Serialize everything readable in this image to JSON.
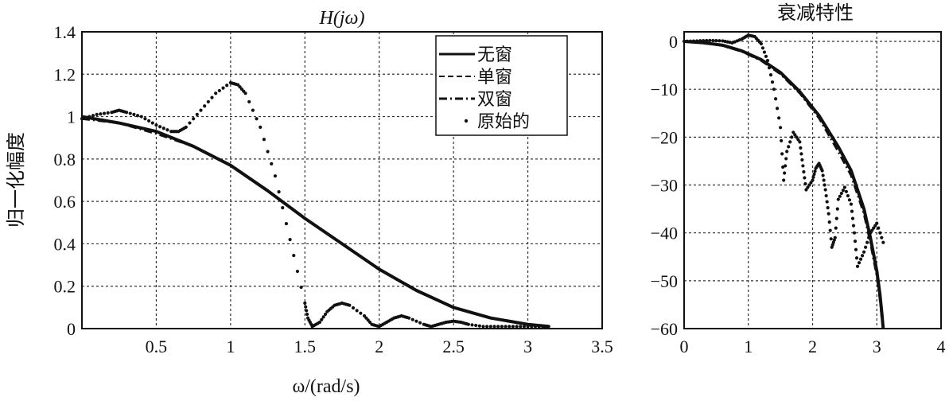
{
  "chart_data": [
    {
      "type": "line",
      "title": "H(jω)",
      "xlabel": "ω/(rad/s)",
      "ylabel": "归一化幅度",
      "xlim": [
        0,
        3.5
      ],
      "ylim": [
        0,
        1.4
      ],
      "xticks": [
        0.5,
        1,
        1.5,
        2,
        2.5,
        3,
        3.5
      ],
      "xtick_labels": [
        "0.5",
        "1",
        "1.5",
        "2",
        "2.5",
        "3",
        "3.5"
      ],
      "yticks": [
        0,
        0.2,
        0.4,
        0.6,
        0.8,
        1,
        1.2,
        1.4
      ],
      "ytick_labels": [
        "0",
        "0.2",
        "0.4",
        "0.6",
        "0.8",
        "1",
        "1.2",
        "1.4"
      ],
      "grid": true,
      "legend_position": "top-right",
      "series": [
        {
          "name": "无窗",
          "style": "solid",
          "x": [
            0,
            0.25,
            0.5,
            0.75,
            1.0,
            1.25,
            1.5,
            1.75,
            2.0,
            2.25,
            2.5,
            2.75,
            3.0,
            3.14
          ],
          "y": [
            1.0,
            0.97,
            0.93,
            0.86,
            0.77,
            0.65,
            0.52,
            0.4,
            0.28,
            0.18,
            0.1,
            0.05,
            0.02,
            0.01
          ]
        },
        {
          "name": "单窗",
          "style": "dashed",
          "x": [
            0,
            0.25,
            0.5,
            0.75,
            1.0,
            1.25,
            1.5,
            1.75,
            2.0,
            2.25,
            2.5,
            2.75,
            3.0,
            3.14
          ],
          "y": [
            1.0,
            0.97,
            0.93,
            0.86,
            0.77,
            0.65,
            0.52,
            0.4,
            0.28,
            0.18,
            0.1,
            0.05,
            0.02,
            0.01
          ]
        },
        {
          "name": "双窗",
          "style": "dashdot",
          "x": [
            0,
            0.25,
            0.5,
            0.75,
            1.0,
            1.25,
            1.5,
            1.75,
            2.0,
            2.25,
            2.5,
            2.75,
            3.0,
            3.14
          ],
          "y": [
            0.99,
            0.97,
            0.92,
            0.86,
            0.77,
            0.65,
            0.52,
            0.4,
            0.28,
            0.18,
            0.1,
            0.05,
            0.02,
            0.01
          ]
        },
        {
          "name": "原始的",
          "style": "dotted",
          "x": [
            0,
            0.1,
            0.2,
            0.25,
            0.3,
            0.4,
            0.5,
            0.6,
            0.65,
            0.7,
            0.8,
            0.9,
            1.0,
            1.05,
            1.1,
            1.2,
            1.3,
            1.4,
            1.5,
            1.52,
            1.55,
            1.6,
            1.65,
            1.7,
            1.75,
            1.8,
            1.9,
            1.95,
            2.0,
            2.05,
            2.1,
            2.15,
            2.2,
            2.3,
            2.35,
            2.4,
            2.45,
            2.5,
            2.55,
            2.6,
            2.7,
            2.8,
            2.9,
            3.0,
            3.1,
            3.14
          ],
          "y": [
            0.99,
            1.01,
            1.02,
            1.03,
            1.02,
            1.0,
            0.96,
            0.93,
            0.93,
            0.95,
            1.03,
            1.11,
            1.16,
            1.15,
            1.11,
            0.95,
            0.72,
            0.42,
            0.12,
            0.05,
            0.01,
            0.03,
            0.08,
            0.11,
            0.12,
            0.11,
            0.06,
            0.02,
            0.01,
            0.03,
            0.05,
            0.06,
            0.05,
            0.02,
            0.01,
            0.02,
            0.03,
            0.035,
            0.03,
            0.02,
            0.01,
            0.01,
            0.01,
            0.01,
            0.01,
            0.01
          ]
        }
      ]
    },
    {
      "type": "line",
      "title": "衰减特性",
      "xlim": [
        0,
        4
      ],
      "ylim": [
        -60,
        2
      ],
      "xticks": [
        0,
        1,
        2,
        3,
        4
      ],
      "xtick_labels": [
        "0",
        "1",
        "2",
        "3",
        "4"
      ],
      "yticks": [
        0,
        -10,
        -20,
        -30,
        -40,
        -50,
        -60
      ],
      "ytick_labels": [
        "0",
        "−10",
        "−20",
        "−30",
        "−40",
        "−50",
        "−60"
      ],
      "grid": true,
      "series": [
        {
          "style": "solid",
          "x": [
            0,
            0.3,
            0.6,
            0.9,
            1.2,
            1.5,
            1.8,
            2.1,
            2.4,
            2.6,
            2.8,
            2.9,
            3.0,
            3.05,
            3.08,
            3.1
          ],
          "y": [
            0,
            -0.3,
            -0.8,
            -2.0,
            -3.8,
            -6.5,
            -10.5,
            -15.5,
            -22,
            -27,
            -35,
            -41,
            -48,
            -53,
            -57,
            -60
          ]
        },
        {
          "style": "dashed",
          "x": [
            0,
            0.3,
            0.6,
            0.9,
            1.2,
            1.5,
            1.8,
            2.1,
            2.4,
            2.6,
            2.8,
            2.9,
            3.0,
            3.05,
            3.08,
            3.1
          ],
          "y": [
            0,
            -0.3,
            -0.8,
            -2.0,
            -3.8,
            -6.5,
            -10.5,
            -15.5,
            -22,
            -27,
            -35,
            -41,
            -48,
            -53,
            -57,
            -60
          ]
        },
        {
          "style": "dashdot",
          "x": [
            0,
            0.3,
            0.6,
            0.9,
            1.2,
            1.5,
            1.8,
            2.1,
            2.4,
            2.6,
            2.8,
            2.9,
            3.0,
            3.05,
            3.08,
            3.1
          ],
          "y": [
            0,
            -0.3,
            -0.9,
            -2.1,
            -4.0,
            -6.8,
            -10.8,
            -16,
            -23,
            -28,
            -36,
            -42,
            -49,
            -54,
            -58,
            -60
          ]
        },
        {
          "style": "dotted",
          "x": [
            0,
            0.2,
            0.4,
            0.6,
            0.75,
            0.9,
            1.0,
            1.1,
            1.2,
            1.3,
            1.4,
            1.5,
            1.55,
            1.6,
            1.7,
            1.8,
            1.85,
            1.9,
            2.0,
            2.05,
            2.1,
            2.15,
            2.2,
            2.25,
            2.3,
            2.35,
            2.4,
            2.5,
            2.6,
            2.65,
            2.7,
            2.8,
            2.9,
            3.0,
            3.1
          ],
          "y": [
            0,
            0.1,
            0.2,
            0.1,
            -0.3,
            0.5,
            1.3,
            1.0,
            -0.5,
            -4.0,
            -10.0,
            -18.0,
            -29.0,
            -23.0,
            -19.0,
            -21.0,
            -26.0,
            -31.0,
            -29.0,
            -26.5,
            -25.5,
            -27.0,
            -31.0,
            -36.0,
            -43.0,
            -41.0,
            -33.0,
            -30.5,
            -34.0,
            -40.0,
            -47.0,
            -44.0,
            -40.0,
            -38.0,
            -42.0
          ]
        }
      ]
    }
  ]
}
